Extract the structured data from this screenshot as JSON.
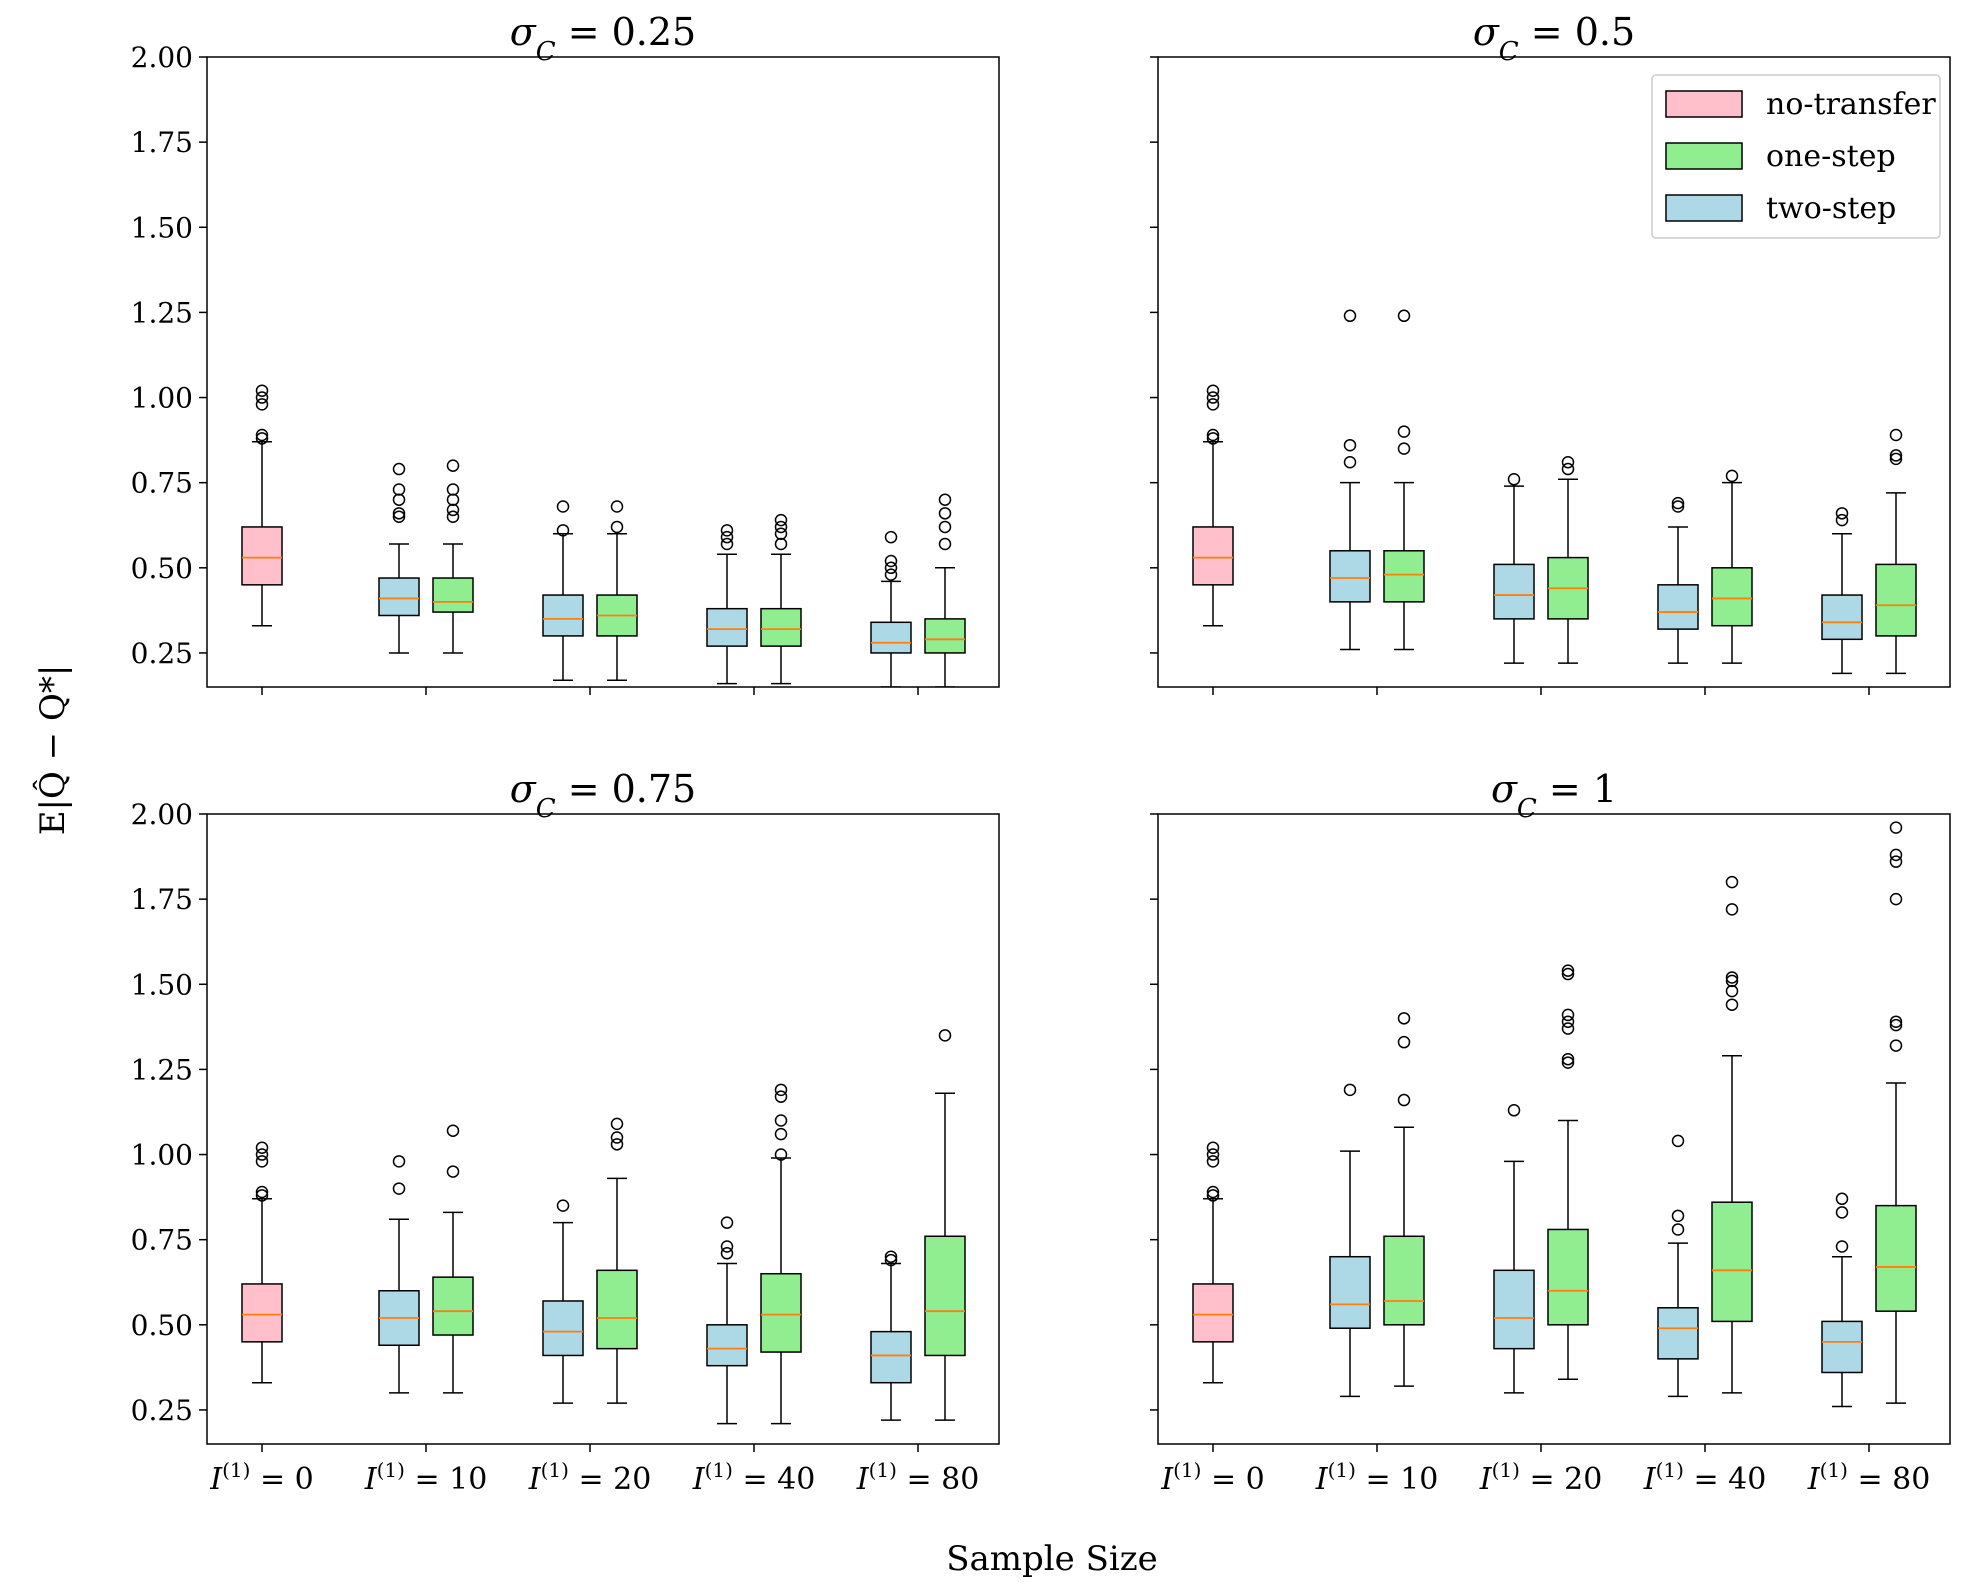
{
  "chart_data": {
    "type": "boxplot",
    "ylabel": "E|Q̂ − Q*|",
    "xlabel": "Sample Size",
    "ylim": [
      0.15,
      2.0
    ],
    "yticks": [
      "0.25",
      "0.50",
      "0.75",
      "1.00",
      "1.25",
      "1.50",
      "1.75",
      "2.00"
    ],
    "ytick_values": [
      0.25,
      0.5,
      0.75,
      1.0,
      1.25,
      1.5,
      1.75,
      2.0
    ],
    "categories": [
      "I(1) = 0",
      "I(1) = 10",
      "I(1) = 20",
      "I(1) = 40",
      "I(1) = 80"
    ],
    "colors": {
      "no-transfer": "#ffc0cb",
      "one-step": "#90ee90",
      "two-step": "#add8e6",
      "median": "#ff7f0e"
    },
    "legend": {
      "position": "top-right",
      "entries": [
        {
          "name": "no-transfer",
          "color": "#ffc0cb"
        },
        {
          "name": "one-step",
          "color": "#90ee90"
        },
        {
          "name": "two-step",
          "color": "#add8e6"
        }
      ]
    },
    "panels": [
      {
        "title": "σC = 0.25",
        "title_main": "σ",
        "title_sub": "C",
        "title_rest": " = 0.25",
        "boxes": [
          {
            "cat": 0,
            "series": "no-transfer",
            "whislo": 0.33,
            "q1": 0.45,
            "med": 0.53,
            "q3": 0.62,
            "whishi": 0.87,
            "fliers": [
              0.88,
              0.89,
              0.98,
              1.0,
              1.02
            ]
          },
          {
            "cat": 1,
            "series": "two-step",
            "whislo": 0.25,
            "q1": 0.36,
            "med": 0.41,
            "q3": 0.47,
            "whishi": 0.57,
            "fliers": [
              0.65,
              0.66,
              0.7,
              0.73,
              0.79
            ]
          },
          {
            "cat": 1,
            "series": "one-step",
            "whislo": 0.25,
            "q1": 0.37,
            "med": 0.4,
            "q3": 0.47,
            "whishi": 0.57,
            "fliers": [
              0.65,
              0.67,
              0.7,
              0.73,
              0.8
            ]
          },
          {
            "cat": 2,
            "series": "two-step",
            "whislo": 0.17,
            "q1": 0.3,
            "med": 0.35,
            "q3": 0.42,
            "whishi": 0.6,
            "fliers": [
              0.61,
              0.68
            ]
          },
          {
            "cat": 2,
            "series": "one-step",
            "whislo": 0.17,
            "q1": 0.3,
            "med": 0.36,
            "q3": 0.42,
            "whishi": 0.6,
            "fliers": [
              0.62,
              0.68
            ]
          },
          {
            "cat": 3,
            "series": "two-step",
            "whislo": 0.16,
            "q1": 0.27,
            "med": 0.32,
            "q3": 0.38,
            "whishi": 0.54,
            "fliers": [
              0.57,
              0.59,
              0.61
            ]
          },
          {
            "cat": 3,
            "series": "one-step",
            "whislo": 0.16,
            "q1": 0.27,
            "med": 0.32,
            "q3": 0.38,
            "whishi": 0.54,
            "fliers": [
              0.57,
              0.6,
              0.62,
              0.64
            ]
          },
          {
            "cat": 4,
            "series": "two-step",
            "whislo": 0.15,
            "q1": 0.25,
            "med": 0.28,
            "q3": 0.34,
            "whishi": 0.46,
            "fliers": [
              0.48,
              0.5,
              0.52,
              0.59
            ]
          },
          {
            "cat": 4,
            "series": "one-step",
            "whislo": 0.15,
            "q1": 0.25,
            "med": 0.29,
            "q3": 0.35,
            "whishi": 0.5,
            "fliers": [
              0.57,
              0.62,
              0.66,
              0.7
            ]
          }
        ]
      },
      {
        "title": "σC = 0.5",
        "title_main": "σ",
        "title_sub": "C",
        "title_rest": " = 0.5",
        "boxes": [
          {
            "cat": 0,
            "series": "no-transfer",
            "whislo": 0.33,
            "q1": 0.45,
            "med": 0.53,
            "q3": 0.62,
            "whishi": 0.87,
            "fliers": [
              0.88,
              0.89,
              0.98,
              1.0,
              1.02
            ]
          },
          {
            "cat": 1,
            "series": "two-step",
            "whislo": 0.26,
            "q1": 0.4,
            "med": 0.47,
            "q3": 0.55,
            "whishi": 0.75,
            "fliers": [
              0.81,
              0.86,
              1.24
            ]
          },
          {
            "cat": 1,
            "series": "one-step",
            "whislo": 0.26,
            "q1": 0.4,
            "med": 0.48,
            "q3": 0.55,
            "whishi": 0.75,
            "fliers": [
              0.85,
              0.9,
              1.24
            ]
          },
          {
            "cat": 2,
            "series": "two-step",
            "whislo": 0.22,
            "q1": 0.35,
            "med": 0.42,
            "q3": 0.51,
            "whishi": 0.74,
            "fliers": [
              0.76
            ]
          },
          {
            "cat": 2,
            "series": "one-step",
            "whislo": 0.22,
            "q1": 0.35,
            "med": 0.44,
            "q3": 0.53,
            "whishi": 0.76,
            "fliers": [
              0.79,
              0.81
            ]
          },
          {
            "cat": 3,
            "series": "two-step",
            "whislo": 0.22,
            "q1": 0.32,
            "med": 0.37,
            "q3": 0.45,
            "whishi": 0.62,
            "fliers": [
              0.68,
              0.69
            ]
          },
          {
            "cat": 3,
            "series": "one-step",
            "whislo": 0.22,
            "q1": 0.33,
            "med": 0.41,
            "q3": 0.5,
            "whishi": 0.75,
            "fliers": [
              0.77
            ]
          },
          {
            "cat": 4,
            "series": "two-step",
            "whislo": 0.19,
            "q1": 0.29,
            "med": 0.34,
            "q3": 0.42,
            "whishi": 0.6,
            "fliers": [
              0.64,
              0.66
            ]
          },
          {
            "cat": 4,
            "series": "one-step",
            "whislo": 0.19,
            "q1": 0.3,
            "med": 0.39,
            "q3": 0.51,
            "whishi": 0.72,
            "fliers": [
              0.82,
              0.83,
              0.89
            ]
          }
        ]
      },
      {
        "title": "σC = 0.75",
        "title_main": "σ",
        "title_sub": "C",
        "title_rest": " = 0.75",
        "boxes": [
          {
            "cat": 0,
            "series": "no-transfer",
            "whislo": 0.33,
            "q1": 0.45,
            "med": 0.53,
            "q3": 0.62,
            "whishi": 0.87,
            "fliers": [
              0.88,
              0.89,
              0.98,
              1.0,
              1.02
            ]
          },
          {
            "cat": 1,
            "series": "two-step",
            "whislo": 0.3,
            "q1": 0.44,
            "med": 0.52,
            "q3": 0.6,
            "whishi": 0.81,
            "fliers": [
              0.9,
              0.98
            ]
          },
          {
            "cat": 1,
            "series": "one-step",
            "whislo": 0.3,
            "q1": 0.47,
            "med": 0.54,
            "q3": 0.64,
            "whishi": 0.83,
            "fliers": [
              0.95,
              1.07
            ]
          },
          {
            "cat": 2,
            "series": "two-step",
            "whislo": 0.27,
            "q1": 0.41,
            "med": 0.48,
            "q3": 0.57,
            "whishi": 0.8,
            "fliers": [
              0.85
            ]
          },
          {
            "cat": 2,
            "series": "one-step",
            "whislo": 0.27,
            "q1": 0.43,
            "med": 0.52,
            "q3": 0.66,
            "whishi": 0.93,
            "fliers": [
              1.03,
              1.05,
              1.09
            ]
          },
          {
            "cat": 3,
            "series": "two-step",
            "whislo": 0.21,
            "q1": 0.38,
            "med": 0.43,
            "q3": 0.5,
            "whishi": 0.68,
            "fliers": [
              0.71,
              0.73,
              0.8
            ]
          },
          {
            "cat": 3,
            "series": "one-step",
            "whislo": 0.21,
            "q1": 0.42,
            "med": 0.53,
            "q3": 0.65,
            "whishi": 0.99,
            "fliers": [
              1.0,
              1.06,
              1.1,
              1.17,
              1.19
            ]
          },
          {
            "cat": 4,
            "series": "two-step",
            "whislo": 0.22,
            "q1": 0.33,
            "med": 0.41,
            "q3": 0.48,
            "whishi": 0.68,
            "fliers": [
              0.69,
              0.7
            ]
          },
          {
            "cat": 4,
            "series": "one-step",
            "whislo": 0.22,
            "q1": 0.41,
            "med": 0.54,
            "q3": 0.76,
            "whishi": 1.18,
            "fliers": [
              1.35
            ]
          }
        ]
      },
      {
        "title": "σC = 1",
        "title_main": "σ",
        "title_sub": "C",
        "title_rest": " = 1",
        "boxes": [
          {
            "cat": 0,
            "series": "no-transfer",
            "whislo": 0.33,
            "q1": 0.45,
            "med": 0.53,
            "q3": 0.62,
            "whishi": 0.87,
            "fliers": [
              0.88,
              0.89,
              0.98,
              1.0,
              1.02
            ]
          },
          {
            "cat": 1,
            "series": "two-step",
            "whislo": 0.29,
            "q1": 0.49,
            "med": 0.56,
            "q3": 0.7,
            "whishi": 1.01,
            "fliers": [
              1.19
            ]
          },
          {
            "cat": 1,
            "series": "one-step",
            "whislo": 0.32,
            "q1": 0.5,
            "med": 0.57,
            "q3": 0.76,
            "whishi": 1.08,
            "fliers": [
              1.16,
              1.33,
              1.4
            ]
          },
          {
            "cat": 2,
            "series": "two-step",
            "whislo": 0.3,
            "q1": 0.43,
            "med": 0.52,
            "q3": 0.66,
            "whishi": 0.98,
            "fliers": [
              1.13
            ]
          },
          {
            "cat": 2,
            "series": "one-step",
            "whislo": 0.34,
            "q1": 0.5,
            "med": 0.6,
            "q3": 0.78,
            "whishi": 1.1,
            "fliers": [
              1.27,
              1.28,
              1.37,
              1.39,
              1.41,
              1.53,
              1.54
            ]
          },
          {
            "cat": 3,
            "series": "two-step",
            "whislo": 0.29,
            "q1": 0.4,
            "med": 0.49,
            "q3": 0.55,
            "whishi": 0.74,
            "fliers": [
              0.78,
              0.82,
              1.04
            ]
          },
          {
            "cat": 3,
            "series": "one-step",
            "whislo": 0.3,
            "q1": 0.51,
            "med": 0.66,
            "q3": 0.86,
            "whishi": 1.29,
            "fliers": [
              1.44,
              1.48,
              1.51,
              1.52,
              1.72,
              1.8
            ]
          },
          {
            "cat": 4,
            "series": "two-step",
            "whislo": 0.26,
            "q1": 0.36,
            "med": 0.45,
            "q3": 0.51,
            "whishi": 0.7,
            "fliers": [
              0.73,
              0.83,
              0.87
            ]
          },
          {
            "cat": 4,
            "series": "one-step",
            "whislo": 0.27,
            "q1": 0.54,
            "med": 0.67,
            "q3": 0.85,
            "whishi": 1.21,
            "fliers": [
              1.32,
              1.38,
              1.39,
              1.75,
              1.86,
              1.88,
              1.96
            ]
          }
        ]
      }
    ]
  }
}
